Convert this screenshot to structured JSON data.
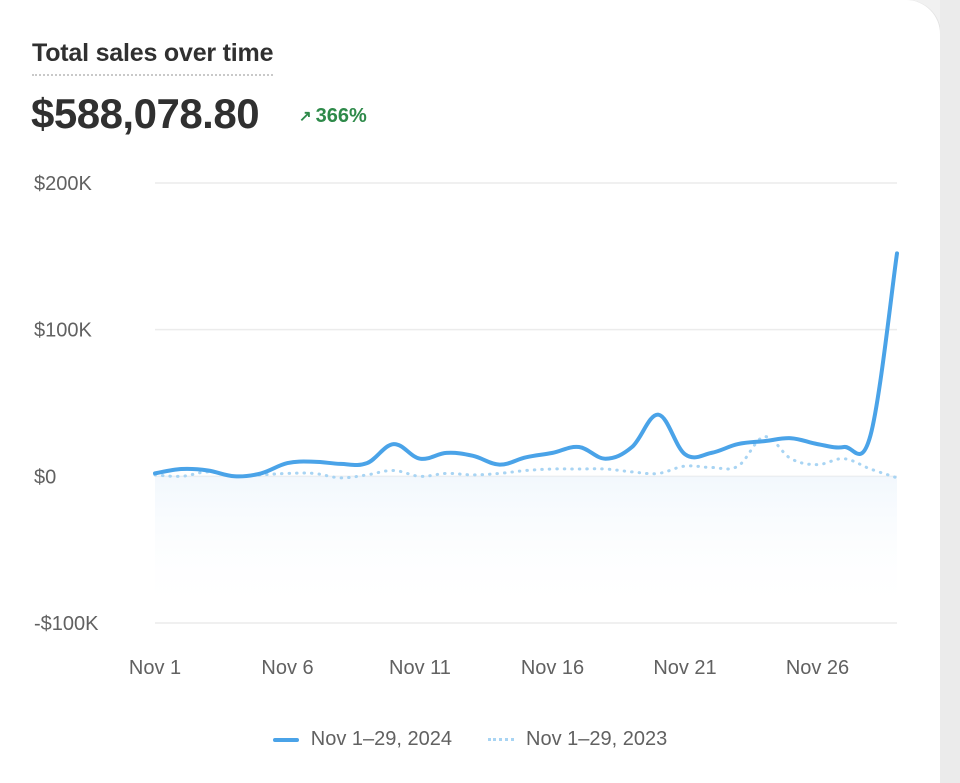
{
  "card": {
    "title": "Total sales over time",
    "total": "$588,078.80",
    "change": "366%",
    "change_icon": "arrow-up-right-icon"
  },
  "colors": {
    "current": "#4aa3e8",
    "previous": "#a8d4f3",
    "positive": "#2e8a4a"
  },
  "legend": {
    "current_label": "Nov 1–29, 2024",
    "previous_label": "Nov 1–29, 2023"
  },
  "chart_data": {
    "type": "line",
    "x": [
      1,
      2,
      3,
      4,
      5,
      6,
      7,
      8,
      9,
      10,
      11,
      12,
      13,
      14,
      15,
      16,
      17,
      18,
      19,
      20,
      21,
      22,
      23,
      24,
      25,
      26,
      27,
      28,
      29
    ],
    "x_unit": "day of November",
    "series": [
      {
        "name": "Nov 1–29, 2024",
        "style": "solid",
        "values": [
          2000,
          5000,
          4000,
          0,
          2000,
          9000,
          10000,
          8500,
          9000,
          22000,
          12000,
          16000,
          14000,
          8000,
          13000,
          16000,
          20000,
          12000,
          20000,
          42000,
          15000,
          16000,
          22000,
          24000,
          26000,
          22000,
          20000,
          28000,
          152000
        ]
      },
      {
        "name": "Nov 1–29, 2023",
        "style": "dotted",
        "values": [
          1000,
          0,
          3000,
          0,
          1000,
          2000,
          2000,
          -1000,
          1000,
          4000,
          0,
          2000,
          1000,
          2000,
          4000,
          5000,
          5000,
          5000,
          3000,
          2000,
          7000,
          6000,
          7000,
          27000,
          12000,
          8000,
          12000,
          5000,
          -1000
        ]
      }
    ],
    "xticks": [
      {
        "x": 1,
        "label": "Nov 1"
      },
      {
        "x": 6,
        "label": "Nov 6"
      },
      {
        "x": 11,
        "label": "Nov 11"
      },
      {
        "x": 16,
        "label": "Nov 16"
      },
      {
        "x": 21,
        "label": "Nov 21"
      },
      {
        "x": 26,
        "label": "Nov 26"
      }
    ],
    "yticks": [
      {
        "v": 200000,
        "label": "$200K"
      },
      {
        "v": 100000,
        "label": "$100K"
      },
      {
        "v": 0,
        "label": "$0"
      },
      {
        "v": -100000,
        "label": "-$100K"
      }
    ],
    "xlim": [
      1,
      29
    ],
    "ylim": [
      -100000,
      200000
    ],
    "grid": true,
    "legend_position": "bottom"
  }
}
